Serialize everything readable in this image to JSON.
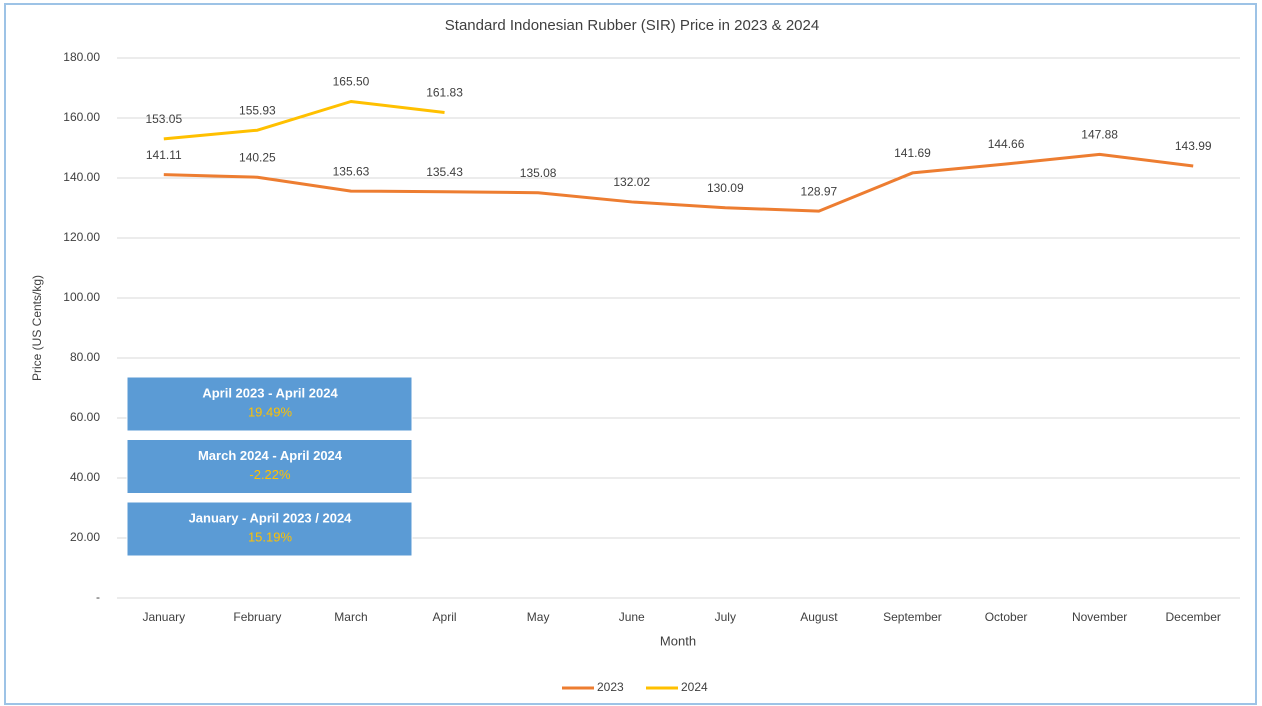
{
  "chart_data": {
    "type": "line",
    "title": "Standard Indonesian Rubber (SIR) Price in 2023 & 2024",
    "x_label": "Month",
    "y_label": "Price (US Cents/kg)",
    "categories": [
      "January",
      "February",
      "March",
      "April",
      "May",
      "June",
      "July",
      "August",
      "September",
      "October",
      "November",
      "December"
    ],
    "series": [
      {
        "name": "2023",
        "color": "#ed7d31",
        "values": [
          141.11,
          140.25,
          135.63,
          135.43,
          135.08,
          132.02,
          130.09,
          128.97,
          141.69,
          144.66,
          147.88,
          143.99
        ],
        "value_labels": [
          "141.11",
          "140.25",
          "135.63",
          "135.43",
          "135.08",
          "132.02",
          "130.09",
          "128.97",
          "141.69",
          "144.66",
          "147.88",
          "143.99"
        ]
      },
      {
        "name": "2024",
        "color": "#ffc000",
        "values": [
          153.05,
          155.93,
          165.5,
          161.83,
          null,
          null,
          null,
          null,
          null,
          null,
          null,
          null
        ],
        "value_labels": [
          "153.05",
          "155.93",
          "165.50",
          "161.83",
          null,
          null,
          null,
          null,
          null,
          null,
          null,
          null
        ]
      }
    ],
    "ylim": [
      0,
      180
    ],
    "yticks": [
      {
        "value": 0,
        "label": "-"
      },
      {
        "value": 20,
        "label": "20.00"
      },
      {
        "value": 40,
        "label": "40.00"
      },
      {
        "value": 60,
        "label": "60.00"
      },
      {
        "value": 80,
        "label": "80.00"
      },
      {
        "value": 100,
        "label": "100.00"
      },
      {
        "value": 120,
        "label": "120.00"
      },
      {
        "value": 140,
        "label": "140.00"
      },
      {
        "value": 160,
        "label": "160.00"
      },
      {
        "value": 180,
        "label": "180.00"
      }
    ],
    "grid": true,
    "legend": "bottom",
    "annotations": [
      {
        "title": "April 2023 -  April 2024",
        "value": "19.49%"
      },
      {
        "title": "March 2024 - April 2024",
        "value": "-2.22%"
      },
      {
        "title": "January - April 2023 / 2024",
        "value": "15.19%"
      }
    ]
  }
}
